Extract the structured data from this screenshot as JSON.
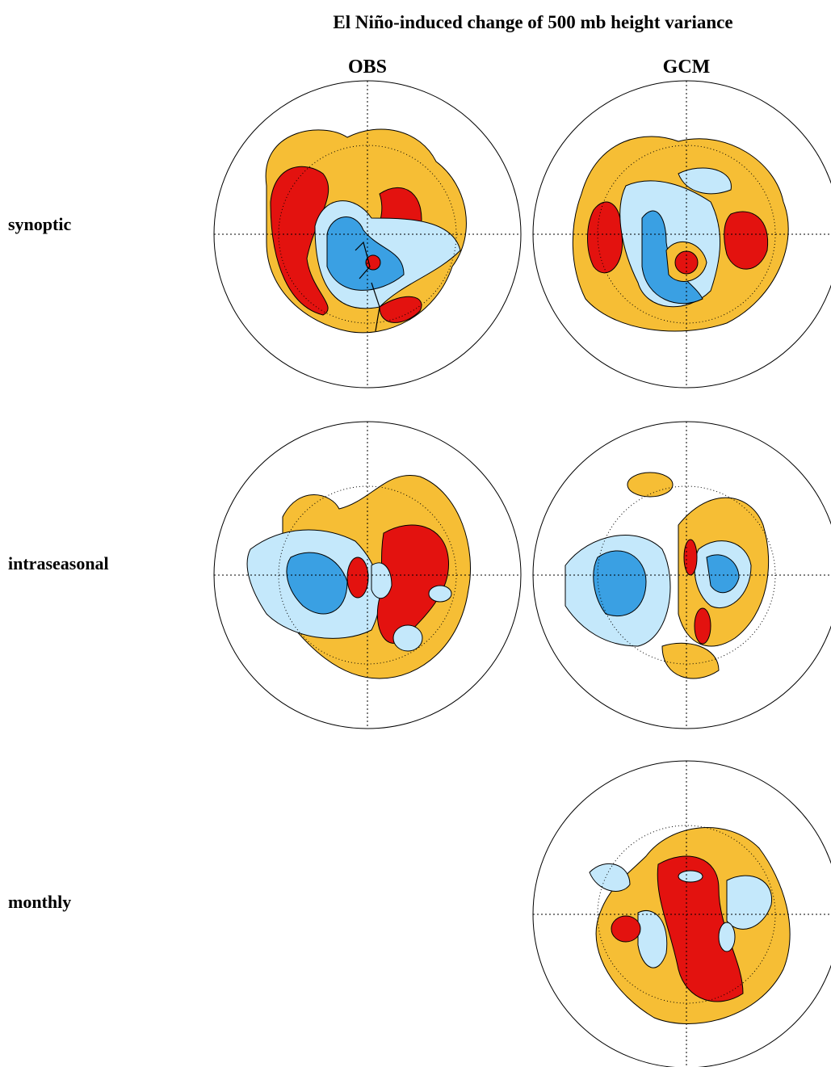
{
  "title": "El Niño-induced change of 500 mb height variance",
  "columns": [
    "OBS",
    "GCM"
  ],
  "rows": [
    "synoptic",
    "intraseasonal",
    "monthly"
  ]
}
